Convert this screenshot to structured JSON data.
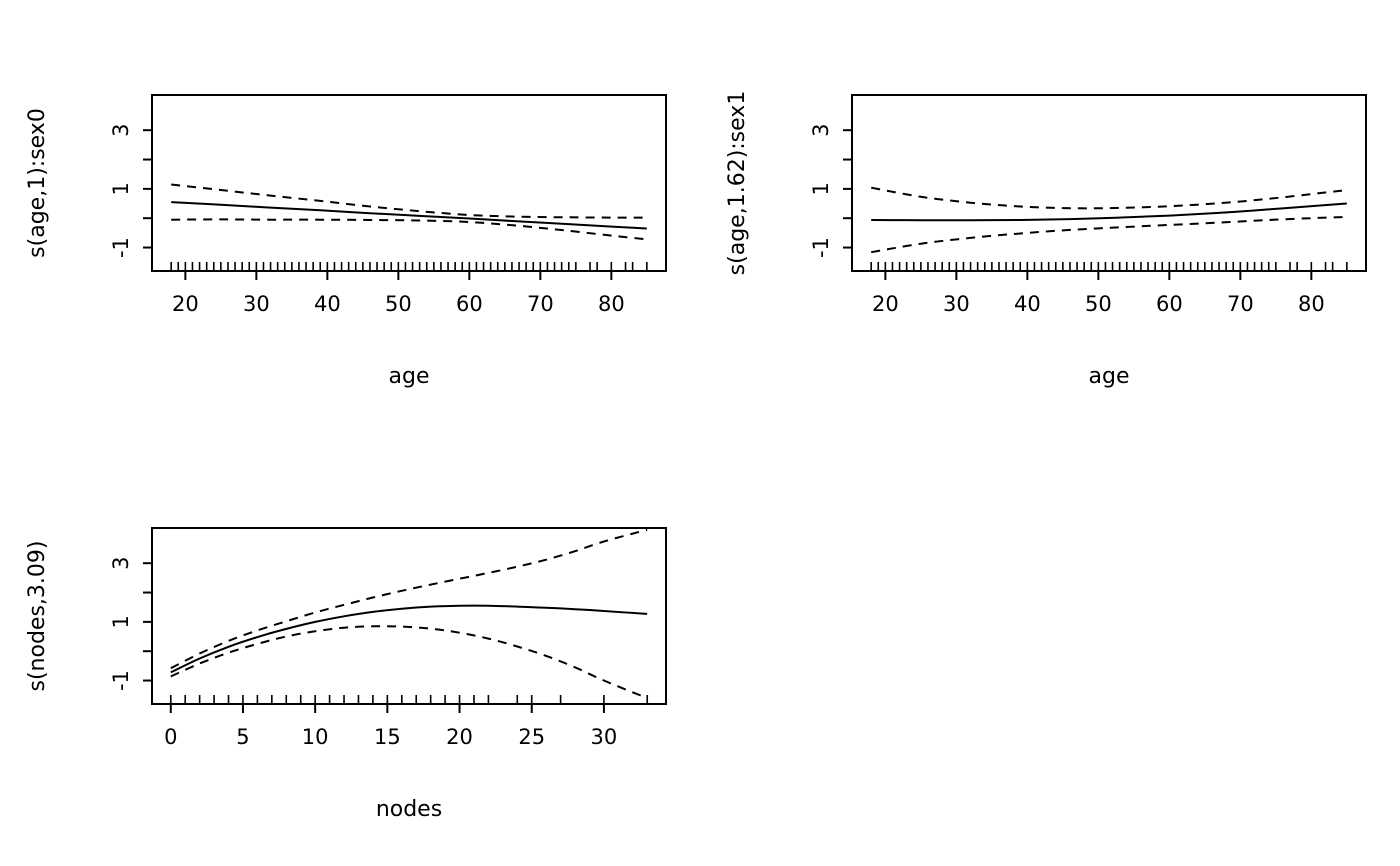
{
  "page": {
    "background": "#ffffff",
    "foreground": "#000000",
    "description": "2x2 grid of GAM smooth term plots (R plot.gam style), fourth panel empty"
  },
  "chart_data": [
    {
      "type": "line",
      "title": "",
      "xlabel": "age",
      "ylabel": "s(age,1):sex0",
      "xlim": [
        15.3,
        87.7
      ],
      "ylim": [
        -1.8,
        4.2
      ],
      "xticks": [
        20,
        30,
        40,
        50,
        60,
        70,
        80
      ],
      "yticks": [
        -1,
        0,
        1,
        2,
        3
      ],
      "ytick_labels": [
        "-1",
        "",
        "1",
        "",
        "3"
      ],
      "grid": false,
      "legend": "none",
      "color": "#000000",
      "series": [
        {
          "name": "fit",
          "style": "solid",
          "x": [
            18,
            25,
            32,
            39,
            46,
            53,
            60,
            67,
            74,
            81,
            85
          ],
          "y": [
            0.55,
            0.46,
            0.36,
            0.27,
            0.17,
            0.08,
            -0.01,
            -0.11,
            -0.2,
            -0.3,
            -0.35
          ]
        },
        {
          "name": "upper-95ci",
          "style": "dashed",
          "x": [
            18,
            25,
            32,
            39,
            46,
            53,
            60,
            67,
            74,
            81,
            85
          ],
          "y": [
            1.15,
            0.96,
            0.77,
            0.59,
            0.4,
            0.24,
            0.11,
            0.05,
            0.03,
            0.02,
            0.02
          ]
        },
        {
          "name": "lower-95ci",
          "style": "dashed",
          "x": [
            18,
            25,
            32,
            39,
            46,
            53,
            60,
            67,
            74,
            81,
            85
          ],
          "y": [
            -0.05,
            -0.04,
            -0.05,
            -0.05,
            -0.06,
            -0.08,
            -0.13,
            -0.26,
            -0.43,
            -0.62,
            -0.72
          ]
        }
      ],
      "rug_x": [
        18,
        19,
        20,
        21,
        22,
        23,
        24,
        25,
        26,
        27,
        28,
        29,
        30,
        31,
        32,
        33,
        34,
        35,
        36,
        37,
        38,
        39,
        40,
        41,
        42,
        43,
        44,
        45,
        46,
        47,
        48,
        49,
        50,
        51,
        52,
        53,
        54,
        55,
        56,
        57,
        58,
        59,
        60,
        61,
        62,
        63,
        64,
        65,
        66,
        67,
        68,
        69,
        70,
        71,
        72,
        73,
        74,
        75,
        77,
        78,
        80,
        82,
        83,
        85
      ]
    },
    {
      "type": "line",
      "title": "",
      "xlabel": "age",
      "ylabel": "s(age,1.62):sex1",
      "xlim": [
        15.3,
        87.7
      ],
      "ylim": [
        -1.8,
        4.2
      ],
      "xticks": [
        20,
        30,
        40,
        50,
        60,
        70,
        80
      ],
      "yticks": [
        -1,
        0,
        1,
        2,
        3
      ],
      "ytick_labels": [
        "-1",
        "",
        "1",
        "",
        "3"
      ],
      "grid": false,
      "legend": "none",
      "color": "#000000",
      "series": [
        {
          "name": "fit",
          "style": "solid",
          "x": [
            18,
            25,
            32,
            39,
            46,
            53,
            60,
            67,
            74,
            81,
            85
          ],
          "y": [
            -0.06,
            -0.07,
            -0.07,
            -0.06,
            -0.03,
            0.02,
            0.09,
            0.18,
            0.3,
            0.43,
            0.5
          ]
        },
        {
          "name": "upper-95ci",
          "style": "dashed",
          "x": [
            18,
            25,
            32,
            39,
            46,
            53,
            60,
            67,
            74,
            81,
            85
          ],
          "y": [
            1.04,
            0.73,
            0.53,
            0.4,
            0.34,
            0.35,
            0.41,
            0.51,
            0.66,
            0.85,
            0.96
          ]
        },
        {
          "name": "lower-95ci",
          "style": "dashed",
          "x": [
            18,
            25,
            32,
            39,
            46,
            53,
            60,
            67,
            74,
            81,
            85
          ],
          "y": [
            -1.16,
            -0.87,
            -0.67,
            -0.52,
            -0.4,
            -0.31,
            -0.23,
            -0.15,
            -0.06,
            0.01,
            0.04
          ]
        }
      ],
      "rug_x": [
        18,
        19,
        20,
        21,
        22,
        23,
        24,
        25,
        26,
        27,
        28,
        29,
        30,
        31,
        32,
        33,
        34,
        35,
        36,
        37,
        38,
        39,
        40,
        41,
        42,
        43,
        44,
        45,
        46,
        47,
        48,
        49,
        50,
        51,
        52,
        53,
        54,
        55,
        56,
        57,
        58,
        59,
        60,
        61,
        62,
        63,
        64,
        65,
        66,
        67,
        68,
        69,
        70,
        71,
        72,
        73,
        74,
        75,
        77,
        78,
        80,
        82,
        83,
        85
      ]
    },
    {
      "type": "line",
      "title": "",
      "xlabel": "nodes",
      "ylabel": "s(nodes,3.09)",
      "xlim": [
        -1.3,
        34.3
      ],
      "ylim": [
        -1.8,
        4.2
      ],
      "xticks": [
        0,
        5,
        10,
        15,
        20,
        25,
        30
      ],
      "yticks": [
        -1,
        0,
        1,
        2,
        3
      ],
      "ytick_labels": [
        "-1",
        "",
        "1",
        "",
        "3"
      ],
      "grid": false,
      "legend": "none",
      "color": "#000000",
      "series": [
        {
          "name": "fit",
          "style": "solid",
          "x": [
            0,
            2,
            4,
            6,
            8,
            10,
            12,
            14,
            16,
            18,
            20,
            22,
            24,
            26,
            28,
            30,
            33
          ],
          "y": [
            -0.72,
            -0.25,
            0.15,
            0.48,
            0.76,
            1.0,
            1.19,
            1.34,
            1.45,
            1.52,
            1.55,
            1.55,
            1.52,
            1.48,
            1.43,
            1.37,
            1.27
          ]
        },
        {
          "name": "upper-95ci",
          "style": "dashed",
          "x": [
            0,
            2,
            4,
            6,
            8,
            10,
            12,
            14,
            16,
            18,
            20,
            22,
            24,
            26,
            28,
            30,
            33
          ],
          "y": [
            -0.58,
            -0.08,
            0.35,
            0.71,
            1.02,
            1.32,
            1.58,
            1.83,
            2.06,
            2.27,
            2.47,
            2.67,
            2.88,
            3.12,
            3.41,
            3.74,
            4.14
          ]
        },
        {
          "name": "lower-95ci",
          "style": "dashed",
          "x": [
            0,
            2,
            4,
            6,
            8,
            10,
            12,
            14,
            16,
            18,
            20,
            22,
            24,
            26,
            28,
            30,
            33
          ],
          "y": [
            -0.86,
            -0.42,
            -0.05,
            0.25,
            0.5,
            0.68,
            0.8,
            0.85,
            0.84,
            0.77,
            0.63,
            0.43,
            0.16,
            -0.16,
            -0.55,
            -1.0,
            -1.6
          ]
        }
      ],
      "rug_x": [
        0,
        1,
        2,
        3,
        4,
        5,
        6,
        7,
        8,
        9,
        10,
        11,
        12,
        13,
        14,
        15,
        16,
        17,
        18,
        19,
        20,
        21,
        22,
        24,
        25,
        27,
        30,
        33
      ]
    }
  ]
}
